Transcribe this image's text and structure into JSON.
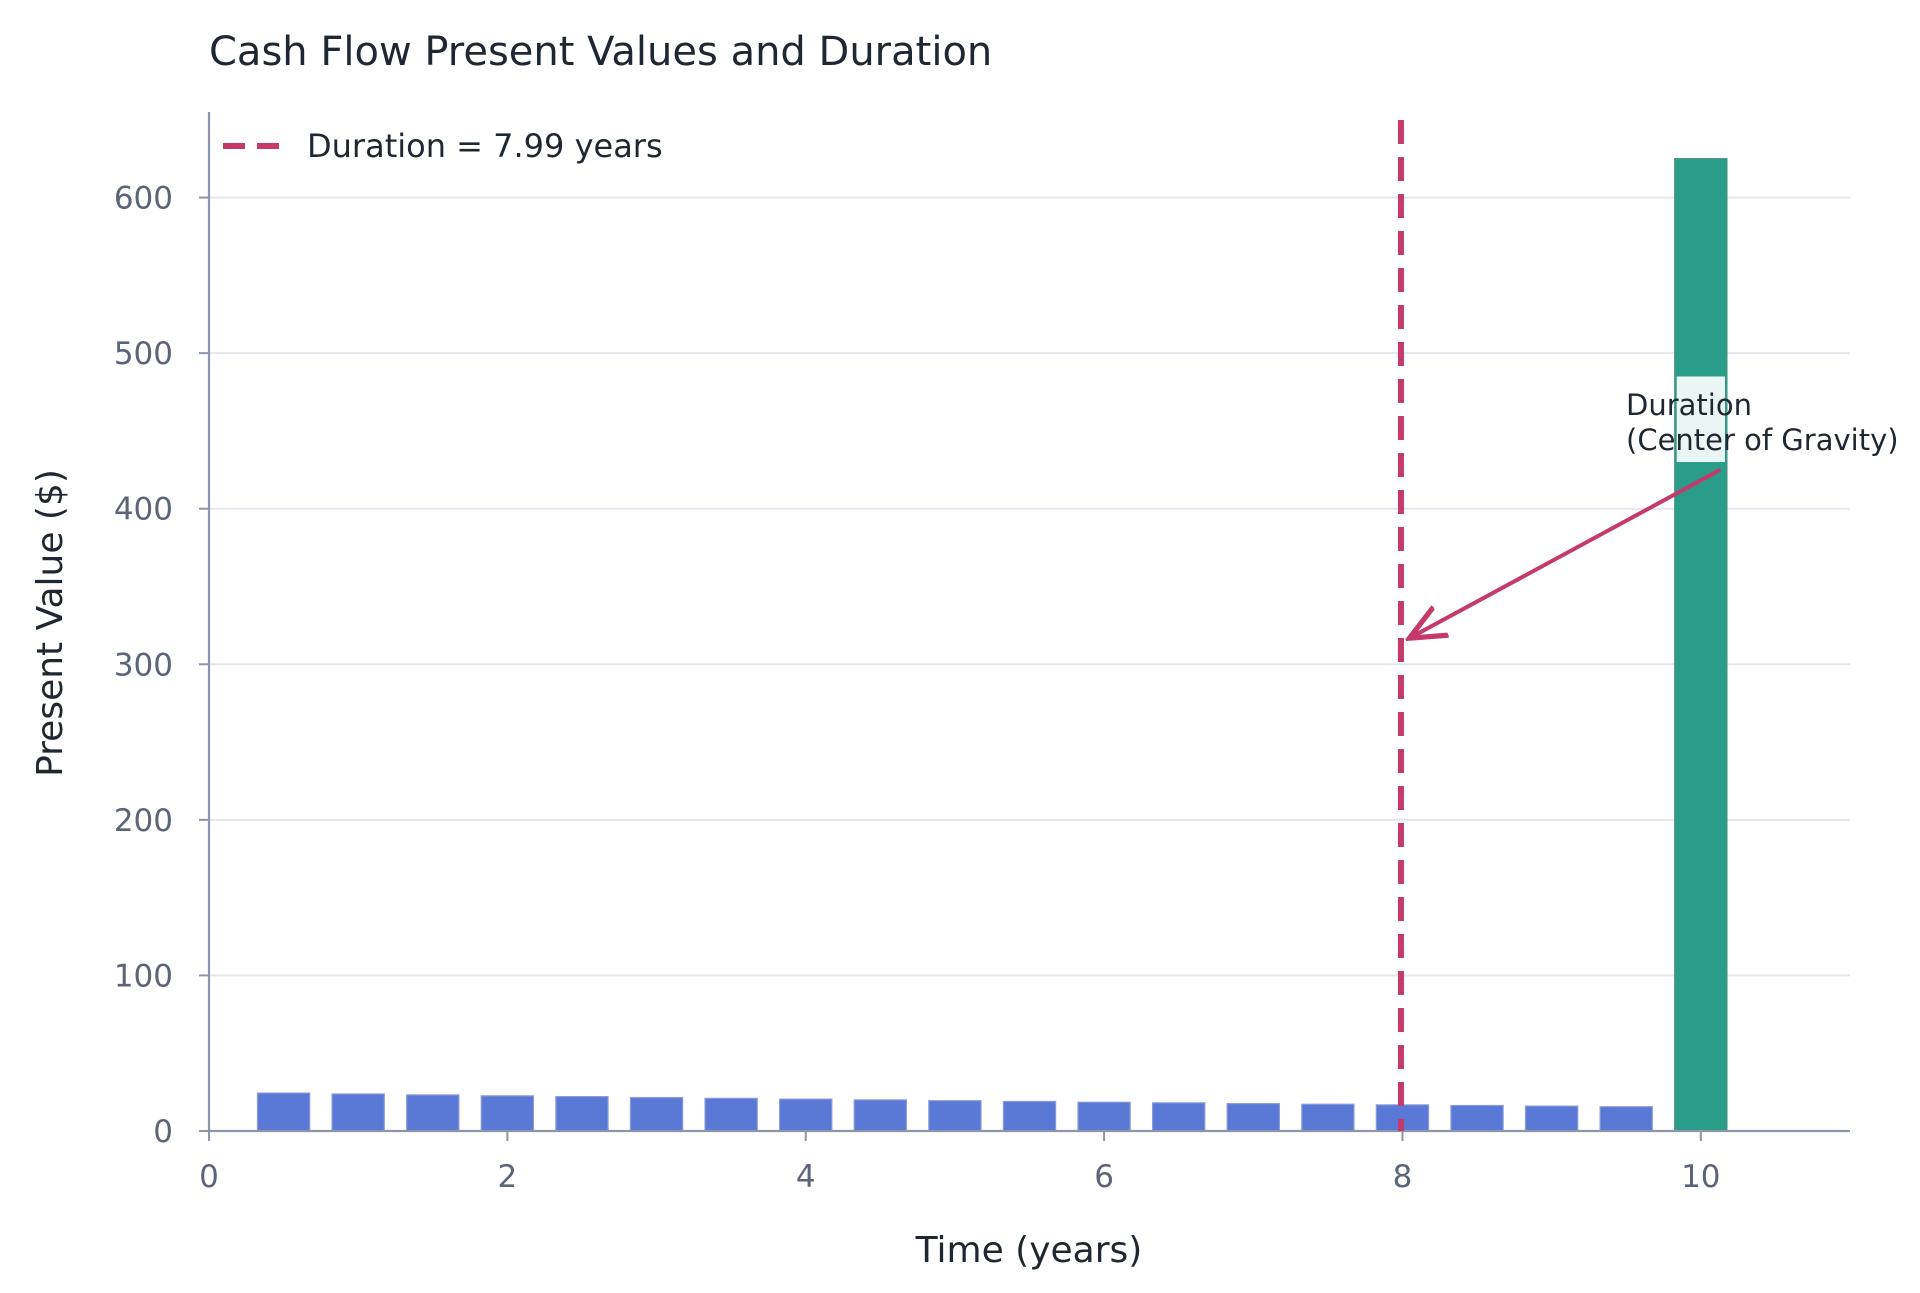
{
  "chart_data": {
    "type": "bar",
    "title": "Cash Flow Present Values and Duration",
    "xlabel": "Time (years)",
    "ylabel": "Present Value ($)",
    "xlim": [
      0,
      11
    ],
    "ylim": [
      0,
      655
    ],
    "xticks": [
      0,
      2,
      4,
      6,
      8,
      10
    ],
    "yticks": [
      0,
      100,
      200,
      300,
      400,
      500,
      600
    ],
    "grid": "horizontal",
    "legend_position": "top-left",
    "bar_width_years": 0.35,
    "coupon_color": "#5a78d6",
    "principal_color": "#2a9d8a",
    "duration_color": "#c43a6b",
    "x": [
      0.5,
      1.0,
      1.5,
      2.0,
      2.5,
      3.0,
      3.5,
      4.0,
      4.5,
      5.0,
      5.5,
      6.0,
      6.5,
      7.0,
      7.5,
      8.0,
      8.5,
      9.0,
      9.5,
      10.0
    ],
    "values": [
      24.4,
      23.8,
      23.2,
      22.6,
      22.1,
      21.5,
      21.0,
      20.5,
      20.0,
      19.5,
      19.0,
      18.5,
      18.1,
      17.6,
      17.2,
      16.8,
      16.4,
      16.0,
      15.6,
      625.0
    ],
    "duration": {
      "value": 7.99,
      "legend_label": "Duration = 7.99 years",
      "annotation": [
        "Duration",
        "(Center of Gravity)"
      ],
      "arrow_from": [
        10.13,
        425
      ],
      "arrow_to": [
        8.07,
        318
      ]
    }
  }
}
